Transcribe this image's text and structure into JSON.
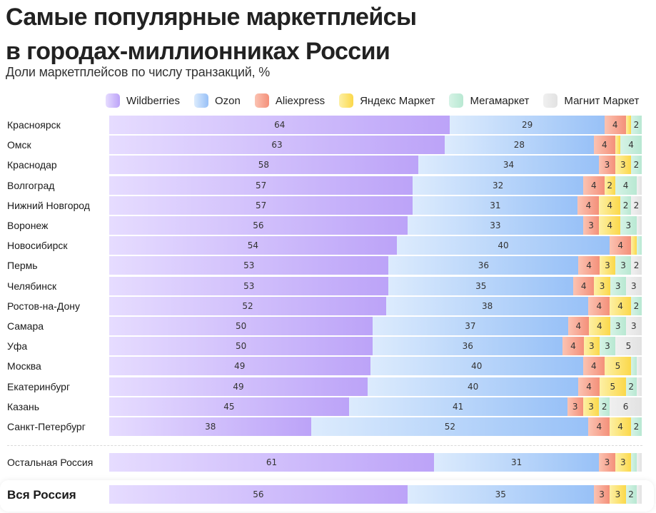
{
  "title_line1": "Самые популярные маркетплейсы",
  "title_line2": "в городах-миллионниках России",
  "subtitle": "Доли маркетплейсов по числу транзакций, %",
  "chart_data": {
    "type": "bar",
    "orientation": "horizontal",
    "stacked": true,
    "title": "Самые популярные маркетплейсы в городах-миллионниках России",
    "subtitle": "Доли маркетплейсов по числу транзакций, %",
    "xlabel": "",
    "ylabel": "",
    "xlim": [
      0,
      100
    ],
    "grid": false,
    "legend_position": "top",
    "series": [
      {
        "name": "Wildberries",
        "color_from": "#e6dcff",
        "color_to": "#bca3f8",
        "swatch": "#b89cf7"
      },
      {
        "name": "Ozon",
        "color_from": "#dcebfd",
        "color_to": "#98c1f7",
        "swatch": "#a9cbf8"
      },
      {
        "name": "Aliexpress",
        "color_from": "#fbc3b2",
        "color_to": "#f4907a",
        "swatch": "#f6a38f"
      },
      {
        "name": "Яндекс Маркет",
        "color_from": "#fdf0a6",
        "color_to": "#fbd84a",
        "swatch": "#fde067"
      },
      {
        "name": "Мегамаркет",
        "color_from": "#d6f3e6",
        "color_to": "#b8e8d2",
        "swatch": "#c4eedb"
      },
      {
        "name": "Магнит Маркет",
        "color_from": "#f0f0f0",
        "color_to": "#e2e2e2",
        "swatch": "#e6e6e6"
      }
    ],
    "categories": [
      "Красноярск",
      "Омск",
      "Краснодар",
      "Волгоград",
      "Нижний Новгород",
      "Воронеж",
      "Новосибирск",
      "Пермь",
      "Челябинск",
      "Ростов-на-Дону",
      "Самара",
      "Уфа",
      "Москва",
      "Екатеринбург",
      "Казань",
      "Санкт-Петербург",
      "Остальная Россия",
      "Вся Россия"
    ],
    "rows": [
      {
        "label": "Красноярск",
        "values": [
          64,
          29,
          4,
          1,
          2,
          0
        ],
        "shown": [
          true,
          true,
          true,
          false,
          true,
          false
        ]
      },
      {
        "label": "Омск",
        "values": [
          63,
          28,
          4,
          1,
          4,
          0
        ],
        "shown": [
          true,
          true,
          true,
          false,
          true,
          false
        ]
      },
      {
        "label": "Краснодар",
        "values": [
          58,
          34,
          3,
          3,
          2,
          0
        ],
        "shown": [
          true,
          true,
          true,
          true,
          true,
          false
        ]
      },
      {
        "label": "Волгоград",
        "values": [
          57,
          32,
          4,
          2,
          4,
          1
        ],
        "shown": [
          true,
          true,
          true,
          true,
          true,
          false
        ]
      },
      {
        "label": "Нижний Новгород",
        "values": [
          57,
          31,
          4,
          4,
          2,
          2
        ],
        "shown": [
          true,
          true,
          true,
          true,
          true,
          true
        ]
      },
      {
        "label": "Воронеж",
        "values": [
          56,
          33,
          3,
          4,
          3,
          1
        ],
        "shown": [
          true,
          true,
          true,
          true,
          true,
          false
        ]
      },
      {
        "label": "Новосибирск",
        "values": [
          54,
          40,
          4,
          1,
          1,
          0
        ],
        "shown": [
          true,
          true,
          true,
          false,
          false,
          false
        ]
      },
      {
        "label": "Пермь",
        "values": [
          53,
          36,
          4,
          3,
          3,
          2
        ],
        "shown": [
          true,
          true,
          true,
          true,
          true,
          true
        ]
      },
      {
        "label": "Челябинск",
        "values": [
          53,
          35,
          4,
          3,
          3,
          3
        ],
        "shown": [
          true,
          true,
          true,
          true,
          true,
          true
        ]
      },
      {
        "label": "Ростов-на-Дону",
        "values": [
          52,
          38,
          4,
          4,
          2,
          0
        ],
        "shown": [
          true,
          true,
          true,
          true,
          true,
          false
        ]
      },
      {
        "label": "Самара",
        "values": [
          50,
          37,
          4,
          4,
          3,
          3
        ],
        "shown": [
          true,
          true,
          true,
          true,
          true,
          true
        ]
      },
      {
        "label": "Уфа",
        "values": [
          50,
          36,
          4,
          3,
          3,
          5
        ],
        "shown": [
          true,
          true,
          true,
          true,
          true,
          true
        ]
      },
      {
        "label": "Москва",
        "values": [
          49,
          40,
          4,
          5,
          1,
          1
        ],
        "shown": [
          true,
          true,
          true,
          true,
          false,
          false
        ]
      },
      {
        "label": "Екатеринбург",
        "values": [
          49,
          40,
          4,
          5,
          2,
          1
        ],
        "shown": [
          true,
          true,
          true,
          true,
          true,
          false
        ]
      },
      {
        "label": "Казань",
        "values": [
          45,
          41,
          3,
          3,
          2,
          6
        ],
        "shown": [
          true,
          true,
          true,
          true,
          true,
          true
        ]
      },
      {
        "label": "Санкт-Петербург",
        "values": [
          38,
          52,
          4,
          4,
          2,
          0
        ],
        "shown": [
          true,
          true,
          true,
          true,
          true,
          false
        ]
      },
      {
        "label": "Остальная Россия",
        "values": [
          61,
          31,
          3,
          3,
          1,
          1
        ],
        "shown": [
          true,
          true,
          true,
          true,
          false,
          false
        ]
      },
      {
        "label": "Вся Россия",
        "values": [
          56,
          35,
          3,
          3,
          2,
          1
        ],
        "shown": [
          true,
          true,
          true,
          true,
          true,
          false
        ]
      }
    ]
  }
}
